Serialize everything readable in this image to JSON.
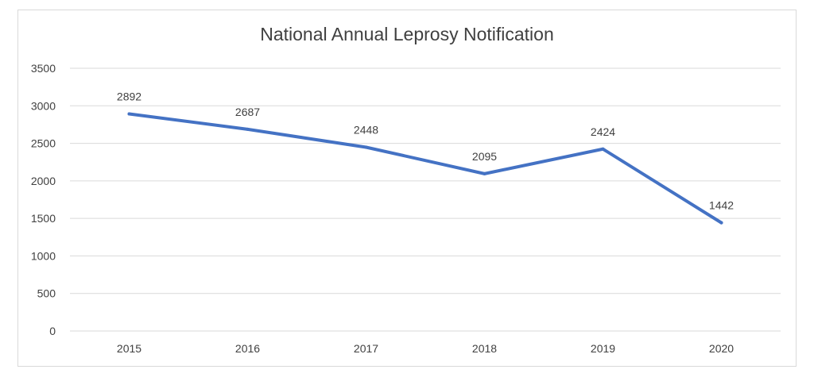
{
  "chart_data": {
    "type": "line",
    "title": "National Annual Leprosy  Notification",
    "xlabel": "",
    "ylabel": "",
    "categories": [
      "2015",
      "2016",
      "2017",
      "2018",
      "2019",
      "2020"
    ],
    "series": [
      {
        "values": [
          2892,
          2687,
          2448,
          2095,
          2424,
          1442
        ],
        "color": "#4472c4"
      }
    ],
    "data_labels": [
      "2892",
      "2687",
      "2448",
      "2095",
      "2424",
      "1442"
    ],
    "ylim": [
      0,
      3500
    ],
    "yticks": [
      0,
      500,
      1000,
      1500,
      2000,
      2500,
      3000,
      3500
    ],
    "ytick_labels": [
      "0",
      "500",
      "1000",
      "1500",
      "2000",
      "2500",
      "3000",
      "3500"
    ],
    "grid": true,
    "legend": "none",
    "gridline_color": "#d9d9d9"
  }
}
